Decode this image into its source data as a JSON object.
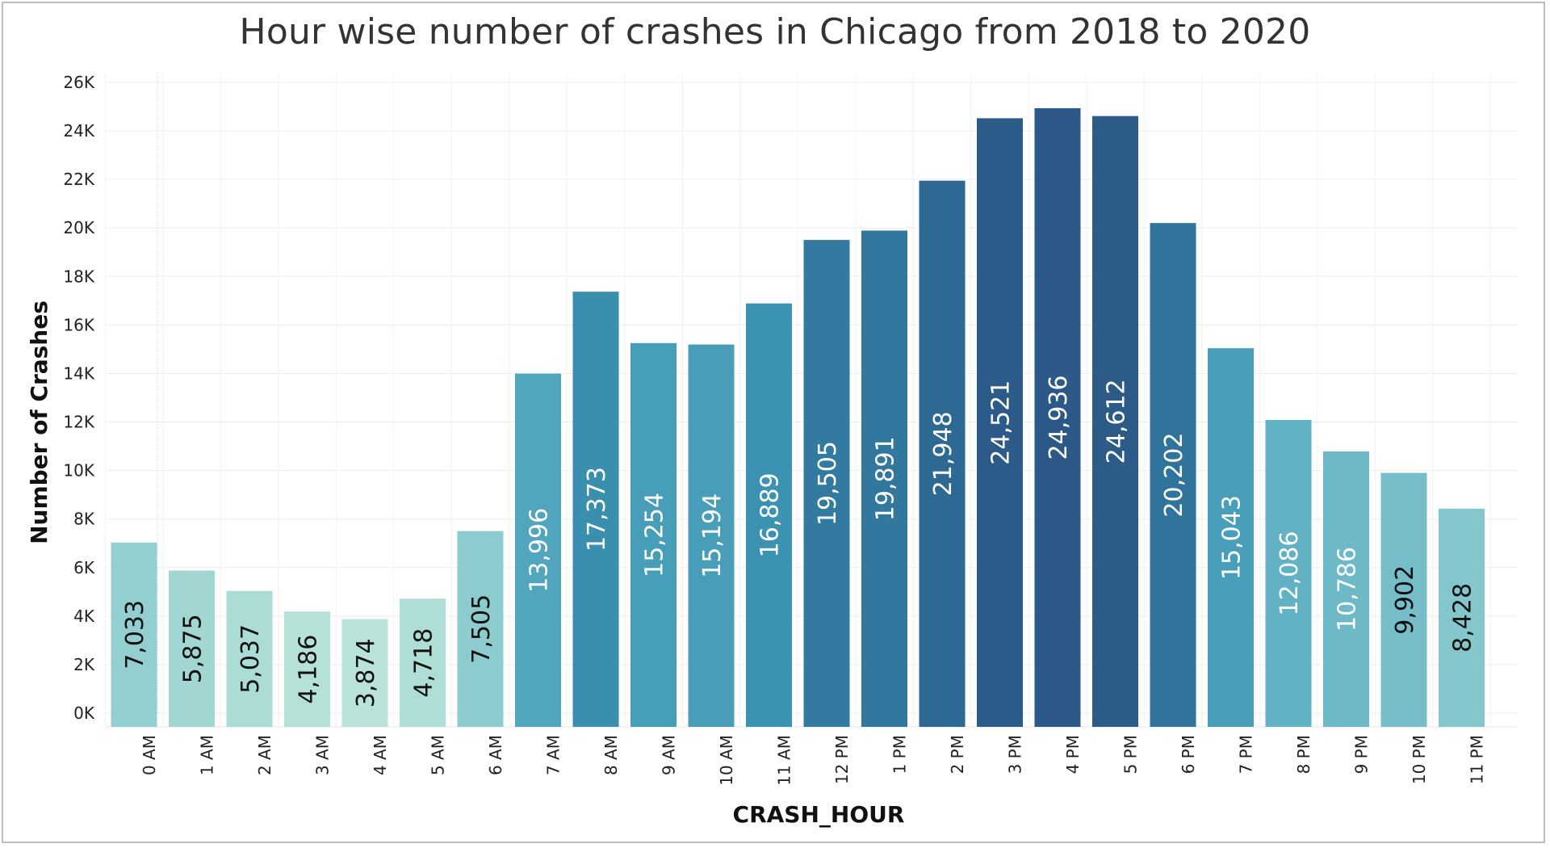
{
  "chart_data": {
    "type": "bar",
    "title": "Hour wise number of crashes in Chicago from 2018 to 2020",
    "xlabel": "CRASH_HOUR",
    "ylabel": "Number of Crashes",
    "categories": [
      "0 AM",
      "1 AM",
      "2 AM",
      "3 AM",
      "4 AM",
      "5 AM",
      "6 AM",
      "7 AM",
      "8 AM",
      "9 AM",
      "10 AM",
      "11 AM",
      "12 PM",
      "1 PM",
      "2 PM",
      "3 PM",
      "4 PM",
      "5 PM",
      "6 PM",
      "7 PM",
      "8 PM",
      "9 PM",
      "10 PM",
      "11 PM"
    ],
    "values": [
      7033,
      5875,
      5037,
      4186,
      3874,
      4718,
      7505,
      13996,
      17373,
      15254,
      15194,
      16889,
      19505,
      19891,
      21948,
      24521,
      24936,
      24612,
      20202,
      15043,
      12086,
      10786,
      9902,
      8428
    ],
    "value_labels": [
      "7,033",
      "5,875",
      "5,037",
      "4,186",
      "3,874",
      "4,718",
      "7,505",
      "13,996",
      "17,373",
      "15,254",
      "15,194",
      "16,889",
      "19,505",
      "19,891",
      "21,948",
      "24,521",
      "24,936",
      "24,612",
      "20,202",
      "15,043",
      "12,086",
      "10,786",
      "9,902",
      "8,428"
    ],
    "ylim": [
      0,
      26000
    ],
    "yticks": [
      0,
      2000,
      4000,
      6000,
      8000,
      10000,
      12000,
      14000,
      16000,
      18000,
      20000,
      22000,
      24000,
      26000
    ],
    "ytick_labels": [
      "0K",
      "2K",
      "4K",
      "6K",
      "8K",
      "10K",
      "12K",
      "14K",
      "16K",
      "18K",
      "20K",
      "22K",
      "24K",
      "26K"
    ],
    "grid": true,
    "color_scale": [
      "#b9e3da",
      "#86c8cc",
      "#5fb1c4",
      "#3d96b4",
      "#2f6f98",
      "#2c5987"
    ]
  }
}
